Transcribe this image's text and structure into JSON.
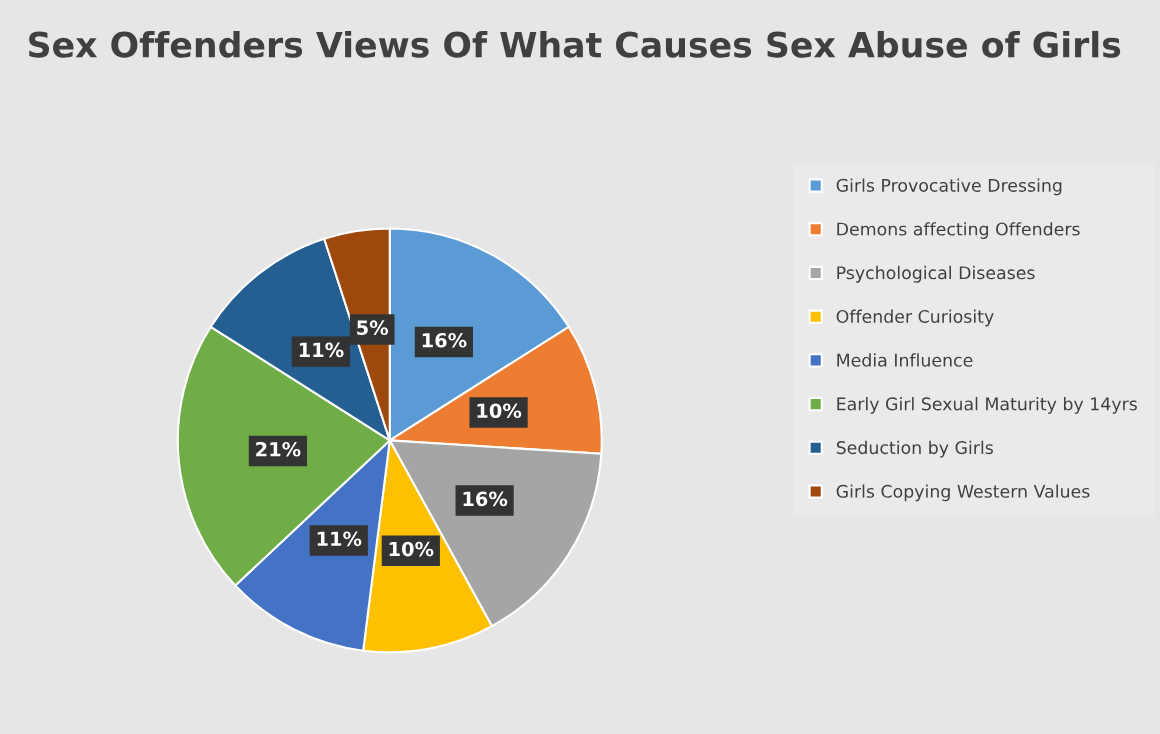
{
  "chart_data": {
    "type": "pie",
    "title": "Sex Offenders Views Of What Causes Sex Abuse of Girls",
    "categories": [
      "Girls Provocative Dressing",
      "Demons affecting Offenders",
      "Psychological Diseases",
      "Offender Curiosity",
      "Media Influence",
      "Early Girl Sexual Maturity by 14yrs",
      "Seduction by Girls",
      "Girls Copying Western Values"
    ],
    "values": [
      16,
      10,
      16,
      10,
      11,
      21,
      11,
      5
    ],
    "colors": [
      "#5b9bd5",
      "#ed7d31",
      "#a5a5a5",
      "#ffc000",
      "#4472c4",
      "#70ad47",
      "#255e91",
      "#9e480e"
    ],
    "value_labels": [
      "16%",
      "10%",
      "16%",
      "10%",
      "11%",
      "21%",
      "11%",
      "5%"
    ],
    "legend": "right"
  }
}
